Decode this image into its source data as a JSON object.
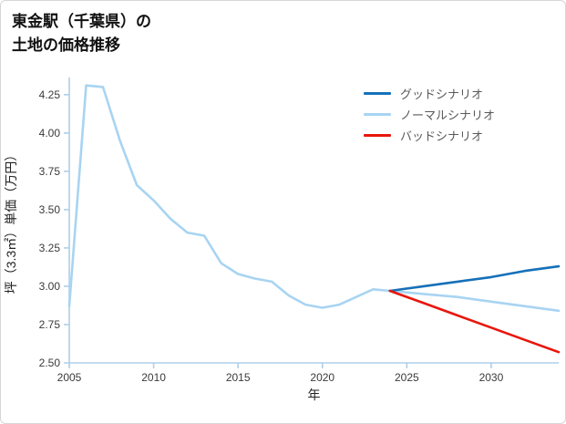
{
  "header": {
    "title_line1": "東金駅（千葉県）の",
    "title_line2": "土地の価格推移"
  },
  "chart_data": {
    "type": "line",
    "title": "東金駅（千葉県）の土地の価格推移",
    "xlabel": "年",
    "ylabel": "坪（3.3㎡）単価（万円）",
    "xlim": [
      2005,
      2034
    ],
    "ylim": [
      2.5,
      4.35
    ],
    "xticks": [
      2005,
      2010,
      2015,
      2020,
      2025,
      2030
    ],
    "yticks": [
      2.5,
      2.75,
      3.0,
      3.25,
      3.5,
      3.75,
      4.0,
      4.25
    ],
    "grid": false,
    "legend_position": "upper-right",
    "axis_color": "#aecfe8",
    "series": [
      {
        "name": "グッドシナリオ",
        "color": "#1670b8",
        "width": 2.6,
        "x": [
          2024,
          2026,
          2028,
          2030,
          2032,
          2034
        ],
        "y": [
          2.97,
          3.0,
          3.03,
          3.06,
          3.1,
          3.13
        ]
      },
      {
        "name": "ノーマルシナリオ",
        "color": "#a8d4f2",
        "width": 2.6,
        "x": [
          2005,
          2006,
          2007,
          2008,
          2009,
          2010,
          2011,
          2012,
          2013,
          2014,
          2015,
          2016,
          2017,
          2018,
          2019,
          2020,
          2021,
          2022,
          2023,
          2024,
          2026,
          2028,
          2030,
          2032,
          2034
        ],
        "y": [
          2.87,
          4.31,
          4.3,
          3.95,
          3.66,
          3.56,
          3.44,
          3.35,
          3.33,
          3.15,
          3.08,
          3.05,
          3.03,
          2.94,
          2.88,
          2.86,
          2.88,
          2.93,
          2.98,
          2.97,
          2.95,
          2.93,
          2.9,
          2.87,
          2.84
        ]
      },
      {
        "name": "バッドシナリオ",
        "color": "#e8160c",
        "width": 2.6,
        "x": [
          2024,
          2026,
          2028,
          2030,
          2032,
          2034
        ],
        "y": [
          2.97,
          2.89,
          2.81,
          2.73,
          2.65,
          2.57
        ]
      }
    ]
  }
}
